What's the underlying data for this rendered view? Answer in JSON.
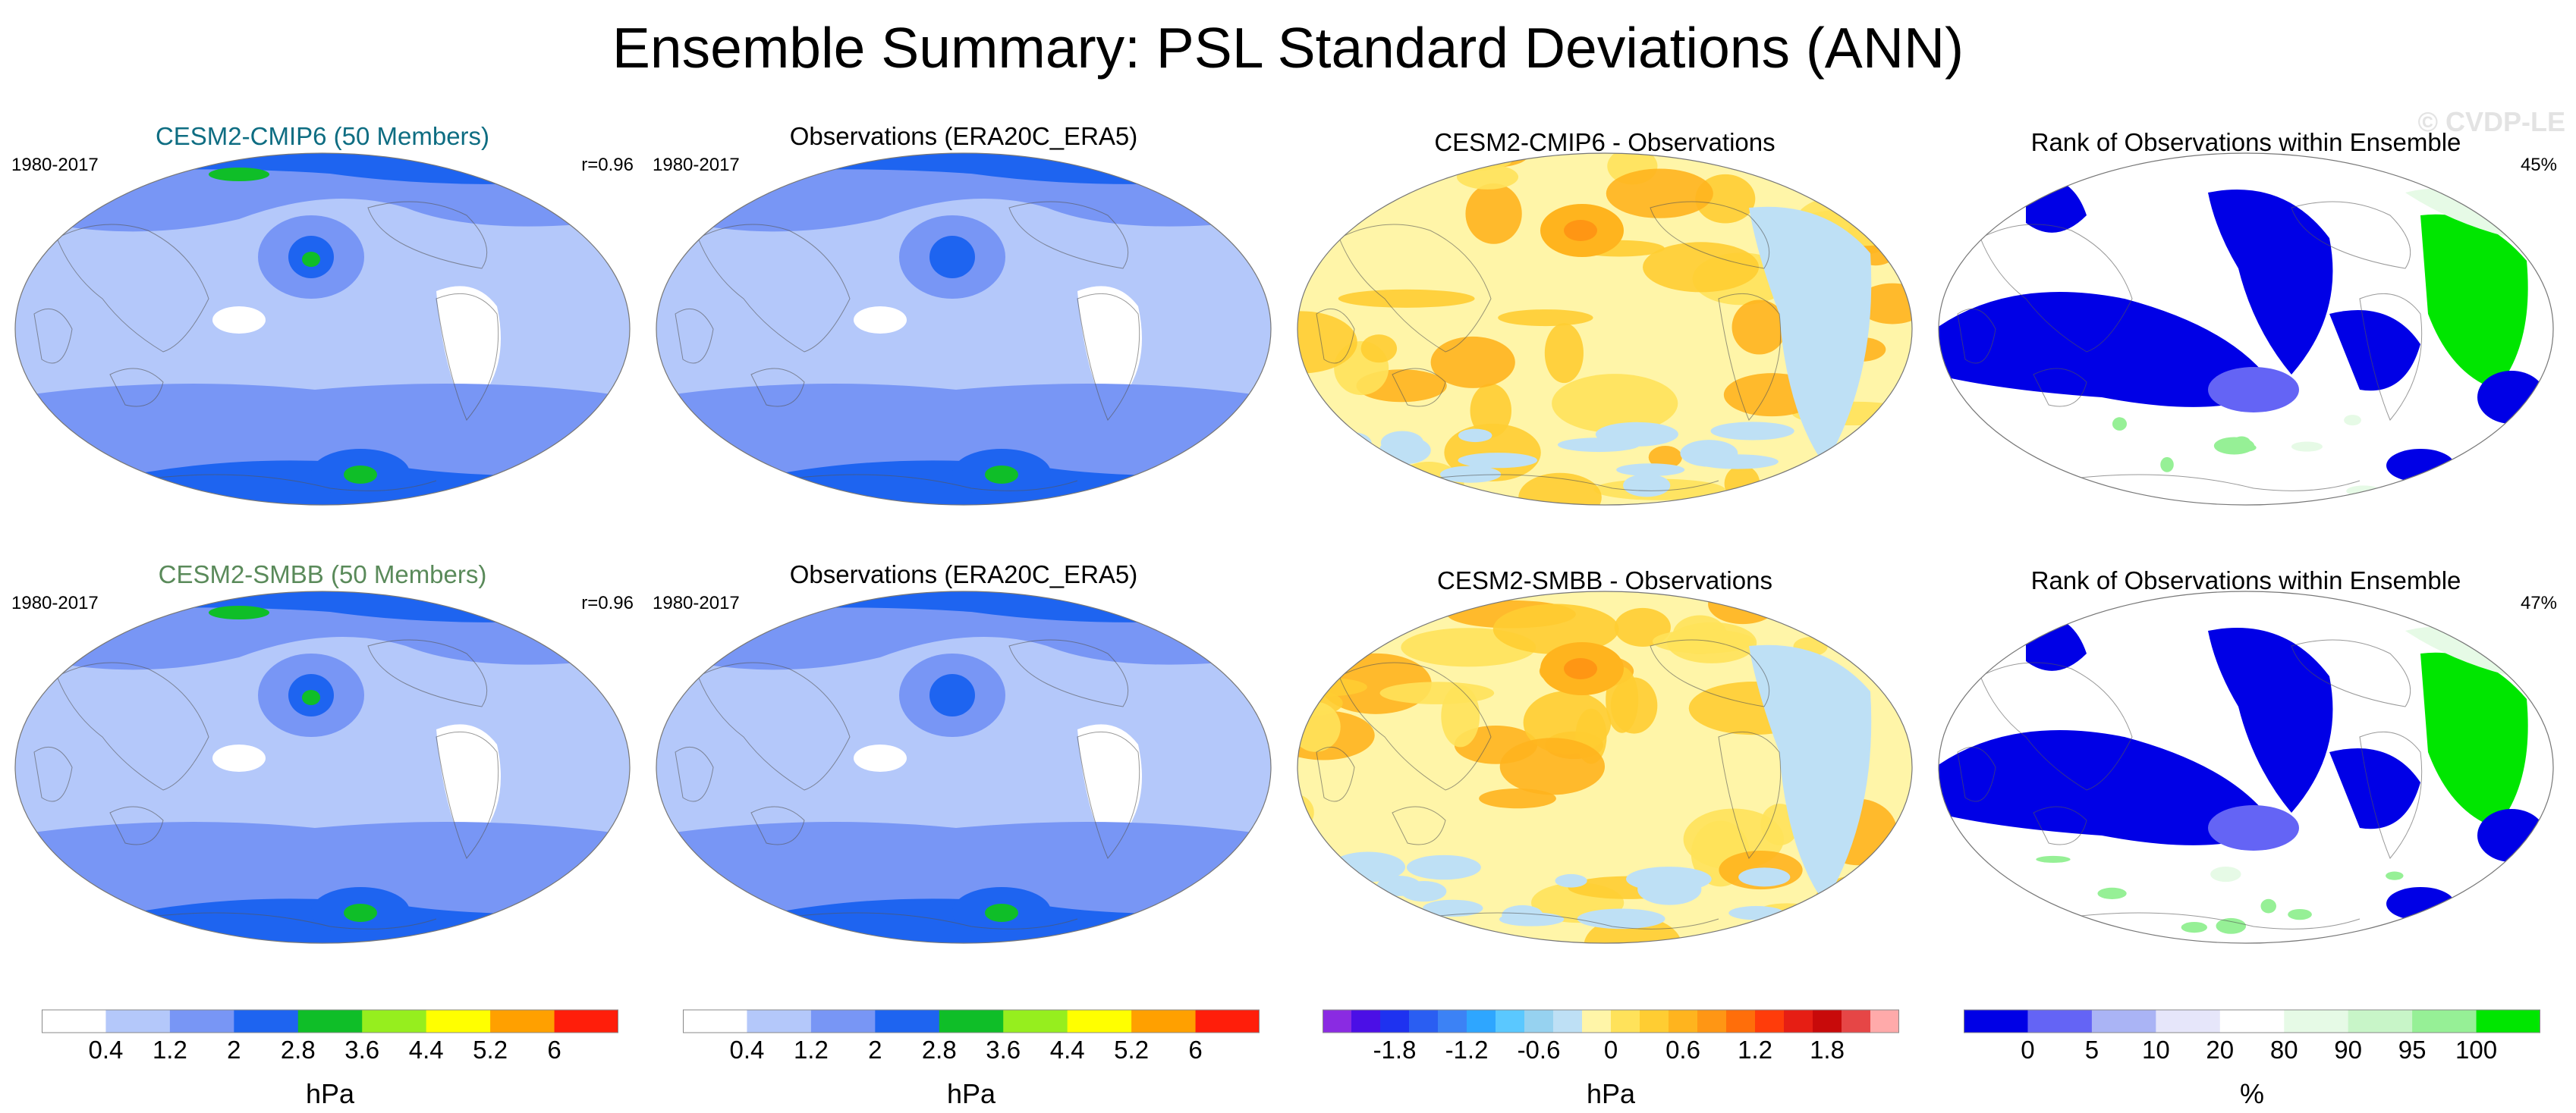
{
  "title": "Ensemble Summary: PSL Standard Deviations (ANN)",
  "watermark": "© CVDP-LE",
  "rows": [
    {
      "panels": [
        {
          "title": "CESM2-CMIP6 (50 Members)",
          "title_color": "#0e6d82",
          "left": "1980-2017",
          "right": "r=0.96",
          "kind": "sd_model"
        },
        {
          "title": "Observations (ERA20C_ERA5)",
          "title_color": "#000000",
          "left": "1980-2017",
          "right": "",
          "kind": "sd_obs"
        },
        {
          "title": "CESM2-CMIP6 - Observations",
          "title_color": "#000000",
          "left": "",
          "right": "",
          "kind": "diff"
        },
        {
          "title": "Rank of Observations within Ensemble",
          "title_color": "#000000",
          "left": "",
          "right": "45%",
          "kind": "rank"
        }
      ]
    },
    {
      "panels": [
        {
          "title": "CESM2-SMBB (50 Members)",
          "title_color": "#5a8a5a",
          "left": "1980-2017",
          "right": "r=0.96",
          "kind": "sd_model"
        },
        {
          "title": "Observations (ERA20C_ERA5)",
          "title_color": "#000000",
          "left": "1980-2017",
          "right": "",
          "kind": "sd_obs"
        },
        {
          "title": "CESM2-SMBB - Observations",
          "title_color": "#000000",
          "left": "",
          "right": "",
          "kind": "diff"
        },
        {
          "title": "Rank of Observations within Ensemble",
          "title_color": "#000000",
          "left": "",
          "right": "47%",
          "kind": "rank"
        }
      ]
    }
  ],
  "colorbars": [
    {
      "unit": "hPa",
      "colors": [
        "#ffffff",
        "#b4c8fa",
        "#7896f5",
        "#1e64f0",
        "#0fbe28",
        "#96ee1e",
        "#ffff00",
        "#ffa000",
        "#ff1e0a"
      ],
      "ticks": [
        "0.4",
        "1.2",
        "2",
        "2.8",
        "3.6",
        "4.4",
        "5.2",
        "6"
      ]
    },
    {
      "unit": "hPa",
      "colors": [
        "#ffffff",
        "#b4c8fa",
        "#7896f5",
        "#1e64f0",
        "#0fbe28",
        "#96ee1e",
        "#ffff00",
        "#ffa000",
        "#ff1e0a"
      ],
      "ticks": [
        "0.4",
        "1.2",
        "2",
        "2.8",
        "3.6",
        "4.4",
        "5.2",
        "6"
      ]
    },
    {
      "unit": "hPa",
      "colors": [
        "#8a2be2",
        "#4b0fe6",
        "#1e32f0",
        "#2a5ef2",
        "#3c82f5",
        "#2ea6ff",
        "#5ac8ff",
        "#96d2f0",
        "#bee0f5",
        "#fff5a8",
        "#ffe25a",
        "#ffcd32",
        "#ffb41e",
        "#ff9614",
        "#ff6e0a",
        "#ff3c0a",
        "#e61e14",
        "#c80a0a",
        "#e64646",
        "#ffaaaa"
      ],
      "ticks": [
        "-1.8",
        "-1.2",
        "-0.6",
        "0",
        "0.6",
        "1.2",
        "1.8"
      ]
    },
    {
      "unit": "%",
      "colors": [
        "#0000e6",
        "#6464f5",
        "#aab4f5",
        "#e6e6fa",
        "#ffffff",
        "#e6fae6",
        "#c8f5c8",
        "#96f096",
        "#00e600"
      ],
      "ticks": [
        "0",
        "5",
        "10",
        "20",
        "80",
        "90",
        "95",
        "100"
      ]
    }
  ],
  "chart_data": [
    {
      "type": "heatmap",
      "title": "CESM2-CMIP6 (50 Members)",
      "period": "1980-2017",
      "pattern_correlation": 0.96,
      "units": "hPa",
      "levels": [
        0.4,
        1.2,
        2,
        2.8,
        3.6,
        4.4,
        5.2,
        6
      ]
    },
    {
      "type": "heatmap",
      "title": "Observations (ERA20C_ERA5)",
      "period": "1980-2017",
      "units": "hPa",
      "levels": [
        0.4,
        1.2,
        2,
        2.8,
        3.6,
        4.4,
        5.2,
        6
      ]
    },
    {
      "type": "heatmap",
      "title": "CESM2-CMIP6 - Observations",
      "units": "hPa",
      "levels": [
        -1.8,
        -1.2,
        -0.6,
        0,
        0.6,
        1.2,
        1.8
      ]
    },
    {
      "type": "heatmap",
      "title": "Rank of Observations within Ensemble",
      "summary_percent": 45,
      "units": "%",
      "levels": [
        0,
        5,
        10,
        20,
        80,
        90,
        95,
        100
      ]
    },
    {
      "type": "heatmap",
      "title": "CESM2-SMBB (50 Members)",
      "period": "1980-2017",
      "pattern_correlation": 0.96,
      "units": "hPa",
      "levels": [
        0.4,
        1.2,
        2,
        2.8,
        3.6,
        4.4,
        5.2,
        6
      ]
    },
    {
      "type": "heatmap",
      "title": "Observations (ERA20C_ERA5)",
      "period": "1980-2017",
      "units": "hPa",
      "levels": [
        0.4,
        1.2,
        2,
        2.8,
        3.6,
        4.4,
        5.2,
        6
      ]
    },
    {
      "type": "heatmap",
      "title": "CESM2-SMBB - Observations",
      "units": "hPa",
      "levels": [
        -1.8,
        -1.2,
        -0.6,
        0,
        0.6,
        1.2,
        1.8
      ]
    },
    {
      "type": "heatmap",
      "title": "Rank of Observations within Ensemble",
      "summary_percent": 47,
      "units": "%",
      "levels": [
        0,
        5,
        10,
        20,
        80,
        90,
        95,
        100
      ]
    }
  ]
}
